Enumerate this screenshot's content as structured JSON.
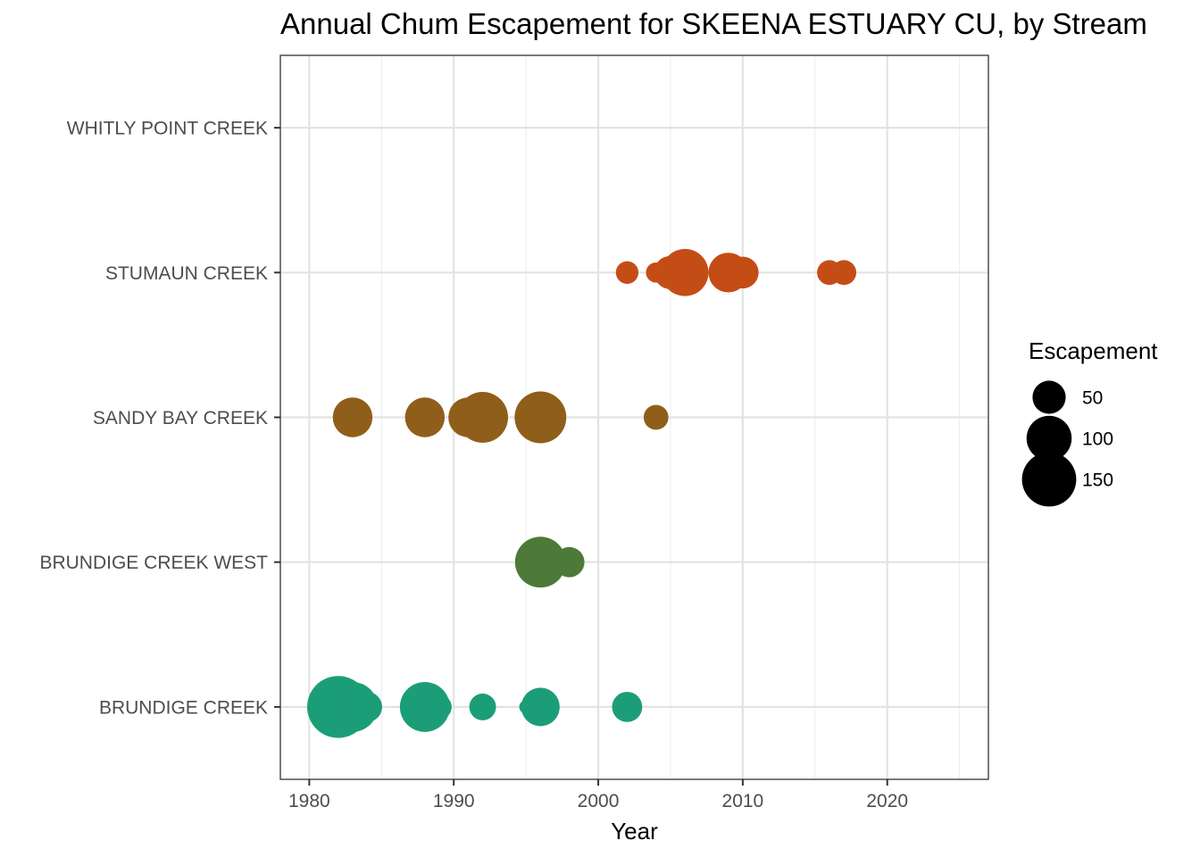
{
  "chart_data": {
    "type": "scatter",
    "title": "Annual Chum Escapement for SKEENA ESTUARY CU, by Stream",
    "xlabel": "Year",
    "ylabel": "",
    "xlim": [
      1978,
      2027
    ],
    "x_ticks": [
      1980,
      1990,
      2000,
      2010,
      2020
    ],
    "categories": [
      "BRUNDIGE CREEK",
      "BRUNDIGE CREEK WEST",
      "SANDY BAY CREEK",
      "STUMAUN CREEK",
      "WHITLY POINT CREEK"
    ],
    "grid": true,
    "legend": {
      "title": "Escapement",
      "placement": "right",
      "entries": [
        {
          "label": "50",
          "value": 50
        },
        {
          "label": "100",
          "value": 100
        },
        {
          "label": "150",
          "value": 150
        }
      ]
    },
    "series": [
      {
        "category": "BRUNDIGE CREEK",
        "color": "#1b9e77",
        "points": [
          {
            "x": 1981,
            "y": 20
          },
          {
            "x": 1982,
            "y": 200
          },
          {
            "x": 1983,
            "y": 125
          },
          {
            "x": 1984,
            "y": 40
          },
          {
            "x": 1988,
            "y": 125
          },
          {
            "x": 1989,
            "y": 25
          },
          {
            "x": 1992,
            "y": 30
          },
          {
            "x": 1995,
            "y": 5
          },
          {
            "x": 1996,
            "y": 70
          },
          {
            "x": 2002,
            "y": 40
          }
        ]
      },
      {
        "category": "BRUNDIGE CREEK WEST",
        "color": "#4d7a38",
        "points": [
          {
            "x": 1996,
            "y": 130
          },
          {
            "x": 1998,
            "y": 40
          }
        ]
      },
      {
        "category": "SANDY BAY CREEK",
        "color": "#8f5e1a",
        "points": [
          {
            "x": 1983,
            "y": 75
          },
          {
            "x": 1988,
            "y": 75
          },
          {
            "x": 1991,
            "y": 75
          },
          {
            "x": 1992,
            "y": 130
          },
          {
            "x": 1996,
            "y": 135
          },
          {
            "x": 2004,
            "y": 25
          }
        ]
      },
      {
        "category": "STUMAUN CREEK",
        "color": "#c44d16",
        "points": [
          {
            "x": 2002,
            "y": 20
          },
          {
            "x": 2004,
            "y": 15
          },
          {
            "x": 2005,
            "y": 50
          },
          {
            "x": 2006,
            "y": 110
          },
          {
            "x": 2009,
            "y": 75
          },
          {
            "x": 2010,
            "y": 45
          },
          {
            "x": 2016,
            "y": 25
          },
          {
            "x": 2017,
            "y": 25
          }
        ]
      },
      {
        "category": "WHITLY POINT CREEK",
        "color": "#000000",
        "points": []
      }
    ]
  }
}
